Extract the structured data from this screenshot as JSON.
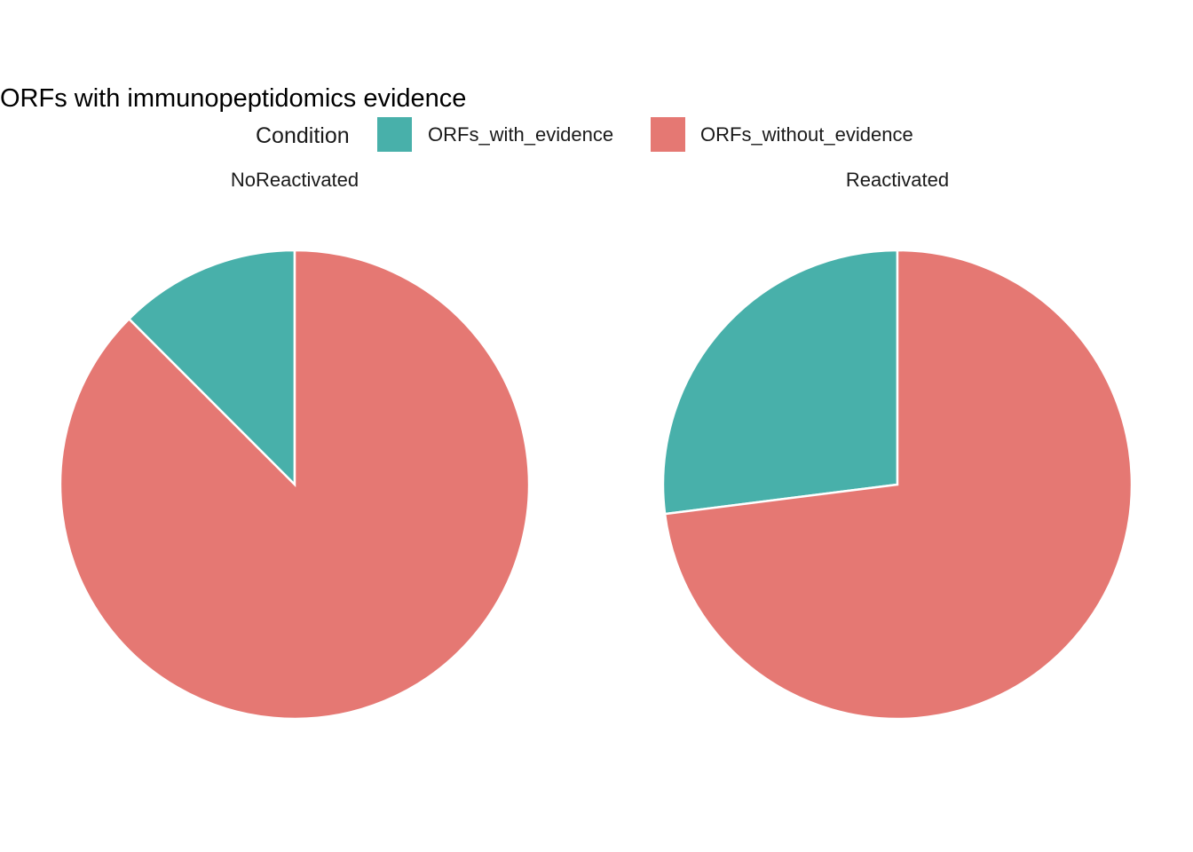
{
  "chart_data": {
    "type": "pie",
    "title": "ORFs with immunopeptidomics evidence",
    "legend": {
      "title": "Condition",
      "placement": "top",
      "entries": [
        {
          "label": "ORFs_with_evidence",
          "color": "#48B0AA"
        },
        {
          "label": "ORFs_without_evidence",
          "color": "#E57873"
        }
      ]
    },
    "facets": [
      {
        "label": "NoReactivated",
        "slices": [
          {
            "category": "ORFs_with_evidence",
            "fraction": 0.125
          },
          {
            "category": "ORFs_without_evidence",
            "fraction": 0.875
          }
        ]
      },
      {
        "label": "Reactivated",
        "slices": [
          {
            "category": "ORFs_with_evidence",
            "fraction": 0.27
          },
          {
            "category": "ORFs_without_evidence",
            "fraction": 0.73
          }
        ]
      }
    ]
  }
}
